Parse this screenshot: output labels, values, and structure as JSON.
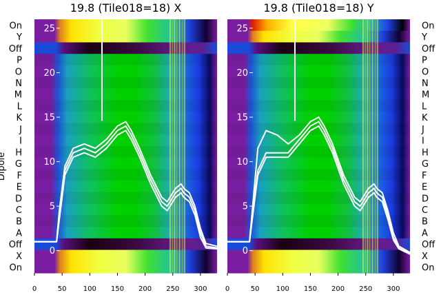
{
  "chart_data": [
    {
      "type": "heatmap",
      "title": "19.8 (Tile018=18) X",
      "ylabel": "Dipole",
      "row_labels": [
        "On",
        "Y",
        "Off",
        "P",
        "O",
        "N",
        "M",
        "L",
        "K",
        "J",
        "I",
        "H",
        "G",
        "F",
        "E",
        "D",
        "C",
        "B",
        "A",
        "Off",
        "X",
        "On"
      ],
      "x_ticks": [
        0,
        50,
        100,
        150,
        200,
        250,
        300
      ],
      "xlim": [
        0,
        330
      ],
      "overlay": {
        "type": "line",
        "y_ticks": [
          0,
          5,
          10,
          15,
          20,
          25
        ],
        "ylim": [
          -2.5,
          26
        ],
        "series": [
          {
            "x": [
              0,
              30,
              40,
              45,
              55,
              70,
              90,
              110,
              130,
              150,
              165,
              175,
              190,
              210,
              230,
              240,
              255,
              265,
              270,
              280,
              290,
              300,
              310,
              330
            ],
            "y": [
              1.0,
              1.0,
              1.0,
              4.0,
              9.0,
              11.0,
              11.5,
              11.0,
              12.0,
              13.5,
              14.0,
              13.0,
              11.0,
              8.0,
              5.5,
              5.0,
              6.5,
              7.0,
              6.5,
              6.0,
              4.5,
              2.0,
              0.5,
              0.3
            ]
          },
          {
            "x": [
              0,
              30,
              40,
              45,
              55,
              70,
              90,
              110,
              130,
              150,
              165,
              175,
              190,
              210,
              230,
              240,
              255,
              265,
              270,
              280,
              290,
              300,
              310,
              330
            ],
            "y": [
              1.0,
              1.0,
              1.0,
              4.5,
              9.5,
              11.5,
              12.0,
              11.5,
              12.5,
              14.0,
              14.5,
              13.5,
              11.5,
              8.5,
              6.0,
              5.5,
              7.0,
              7.5,
              7.0,
              6.5,
              5.0,
              2.5,
              0.8,
              0.5
            ]
          },
          {
            "x": [
              0,
              30,
              40,
              45,
              55,
              70,
              90,
              110,
              130,
              150,
              165,
              175,
              190,
              210,
              230,
              240,
              255,
              265,
              270,
              280,
              290,
              300,
              310,
              330
            ],
            "y": [
              1.0,
              1.0,
              1.0,
              3.5,
              8.5,
              10.5,
              11.0,
              10.5,
              11.5,
              13.0,
              13.5,
              12.5,
              10.5,
              7.5,
              5.0,
              4.5,
              6.0,
              6.5,
              6.0,
              5.5,
              4.0,
              1.5,
              0.3,
              0.2
            ]
          }
        ]
      }
    },
    {
      "type": "heatmap",
      "title": "19.8 (Tile018=18) Y",
      "ylabel": "",
      "row_labels": [
        "On",
        "Y",
        "Off",
        "P",
        "O",
        "N",
        "M",
        "L",
        "K",
        "J",
        "I",
        "H",
        "G",
        "F",
        "E",
        "D",
        "C",
        "B",
        "A",
        "Off",
        "X",
        "On"
      ],
      "x_ticks": [
        0,
        50,
        100,
        150,
        200,
        250,
        300
      ],
      "xlim": [
        0,
        330
      ],
      "overlay": {
        "type": "line",
        "y_ticks": [
          0,
          5,
          10,
          15,
          20,
          25
        ],
        "ylim": [
          -2.5,
          26
        ],
        "series": [
          {
            "x": [
              0,
              30,
              40,
              45,
              55,
              70,
              90,
              110,
              130,
              150,
              165,
              175,
              190,
              210,
              230,
              240,
              255,
              265,
              270,
              280,
              290,
              300,
              310,
              330
            ],
            "y": [
              1.0,
              1.0,
              1.0,
              4.0,
              9.0,
              11.0,
              11.0,
              11.0,
              12.5,
              14.0,
              14.5,
              13.5,
              11.5,
              8.0,
              5.5,
              5.0,
              6.5,
              7.0,
              6.5,
              6.0,
              4.0,
              1.5,
              0.3,
              -0.3
            ]
          },
          {
            "x": [
              0,
              30,
              40,
              45,
              55,
              70,
              90,
              110,
              130,
              150,
              165,
              175,
              190,
              210,
              230,
              240,
              255,
              265,
              270,
              280,
              290,
              300,
              310,
              330
            ],
            "y": [
              1.0,
              1.0,
              1.0,
              4.5,
              11.5,
              13.5,
              13.0,
              12.0,
              13.0,
              14.5,
              15.0,
              14.0,
              12.0,
              8.5,
              6.0,
              5.5,
              7.0,
              7.5,
              7.0,
              6.5,
              4.5,
              2.0,
              0.5,
              -0.2
            ]
          },
          {
            "x": [
              0,
              30,
              40,
              45,
              55,
              70,
              90,
              110,
              130,
              150,
              165,
              175,
              190,
              210,
              230,
              240,
              255,
              265,
              270,
              280,
              290,
              300,
              310,
              330
            ],
            "y": [
              1.0,
              1.0,
              1.0,
              3.5,
              8.5,
              10.5,
              10.5,
              10.5,
              12.0,
              13.5,
              14.0,
              13.0,
              11.0,
              7.5,
              5.0,
              4.5,
              6.0,
              6.5,
              6.0,
              5.5,
              3.5,
              1.2,
              0.2,
              -0.4
            ]
          }
        ]
      }
    }
  ],
  "colors": {
    "background": "#ffffff",
    "overlay_line": "#ffffff",
    "text": "#000000",
    "band_purple": "#7b1fa2",
    "band_blue": "#1565c0",
    "band_green": "#00c000",
    "band_yellow": "#ffff00",
    "band_dark": "#1a0010"
  }
}
